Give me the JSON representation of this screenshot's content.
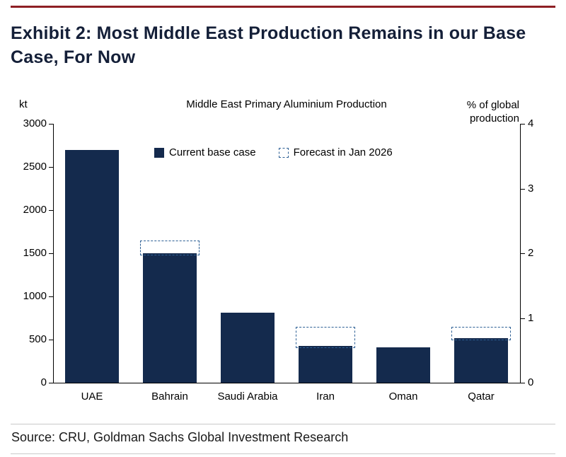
{
  "exhibit": {
    "title": "Exhibit 2: Most Middle East Production Remains in our Base Case, For Now",
    "source": "Source: CRU, Goldman Sachs Global Investment Research"
  },
  "chart_data": {
    "type": "bar",
    "title": "Middle East Primary Aluminium Production",
    "left_axis_label": "kt",
    "right_axis_label": "% of global production",
    "categories": [
      "UAE",
      "Bahrain",
      "Saudi Arabia",
      "Iran",
      "Oman",
      "Qatar"
    ],
    "series": [
      {
        "name": "Current base case",
        "style": "solid-bar",
        "color": "#142A4D",
        "values": [
          2700,
          1500,
          810,
          430,
          410,
          520
        ]
      },
      {
        "name": "Forecast in Jan 2026",
        "style": "dashed-outline",
        "color": "#2E6095",
        "values": [
          2700,
          1650,
          810,
          650,
          410,
          650
        ]
      }
    ],
    "left_axis": {
      "unit": "kt",
      "min": 0,
      "max": 3000,
      "ticks": [
        0,
        500,
        1000,
        1500,
        2000,
        2500,
        3000
      ]
    },
    "right_axis": {
      "unit": "% of global production",
      "min": 0,
      "max": 4,
      "ticks": [
        0,
        1,
        2,
        3,
        4
      ]
    },
    "legend_position": "inside-top",
    "grid": false
  },
  "colors": {
    "top_rule": "#8E1F24",
    "bar_fill": "#142A4D",
    "forecast_outline": "#2E6095",
    "title_text": "#141F38",
    "divider": "#C9C9C9"
  }
}
